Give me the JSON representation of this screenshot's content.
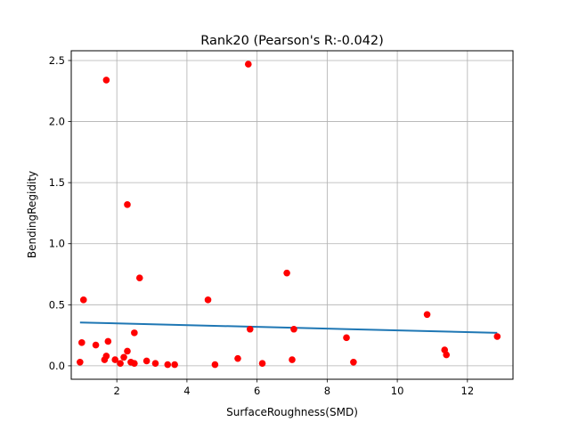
{
  "chart_data": {
    "type": "scatter",
    "title": "Rank20 (Pearson's R:-0.042)",
    "xlabel": "SurfaceRoughness(SMD)",
    "ylabel": "BendingRegidity",
    "xlim": [
      0.7,
      13.3
    ],
    "ylim": [
      -0.11,
      2.58
    ],
    "xticks": [
      2,
      4,
      6,
      8,
      10,
      12
    ],
    "yticks": [
      0.0,
      0.5,
      1.0,
      1.5,
      2.0,
      2.5
    ],
    "xtick_labels": [
      "2",
      "4",
      "6",
      "8",
      "10",
      "12"
    ],
    "ytick_labels": [
      "0.0",
      "0.5",
      "1.0",
      "1.5",
      "2.0",
      "2.5"
    ],
    "grid": true,
    "marker_color": "#ff0000",
    "fit_color": "#1f77b4",
    "points": [
      {
        "x": 5.75,
        "y": 2.47
      },
      {
        "x": 1.7,
        "y": 2.34
      },
      {
        "x": 2.3,
        "y": 1.32
      },
      {
        "x": 6.85,
        "y": 0.76
      },
      {
        "x": 2.65,
        "y": 0.72
      },
      {
        "x": 1.05,
        "y": 0.54
      },
      {
        "x": 4.6,
        "y": 0.54
      },
      {
        "x": 10.85,
        "y": 0.42
      },
      {
        "x": 5.8,
        "y": 0.3
      },
      {
        "x": 7.05,
        "y": 0.3
      },
      {
        "x": 2.5,
        "y": 0.27
      },
      {
        "x": 12.85,
        "y": 0.24
      },
      {
        "x": 8.55,
        "y": 0.23
      },
      {
        "x": 1.75,
        "y": 0.2
      },
      {
        "x": 1.0,
        "y": 0.19
      },
      {
        "x": 1.4,
        "y": 0.17
      },
      {
        "x": 11.35,
        "y": 0.13
      },
      {
        "x": 2.3,
        "y": 0.12
      },
      {
        "x": 11.4,
        "y": 0.09
      },
      {
        "x": 1.7,
        "y": 0.08
      },
      {
        "x": 2.2,
        "y": 0.07
      },
      {
        "x": 1.95,
        "y": 0.05
      },
      {
        "x": 1.65,
        "y": 0.05
      },
      {
        "x": 5.45,
        "y": 0.06
      },
      {
        "x": 7.0,
        "y": 0.05
      },
      {
        "x": 2.85,
        "y": 0.04
      },
      {
        "x": 0.95,
        "y": 0.03
      },
      {
        "x": 2.4,
        "y": 0.03
      },
      {
        "x": 8.75,
        "y": 0.03
      },
      {
        "x": 2.1,
        "y": 0.02
      },
      {
        "x": 2.5,
        "y": 0.02
      },
      {
        "x": 3.1,
        "y": 0.02
      },
      {
        "x": 6.15,
        "y": 0.02
      },
      {
        "x": 3.45,
        "y": 0.01
      },
      {
        "x": 3.65,
        "y": 0.01
      },
      {
        "x": 4.8,
        "y": 0.01
      }
    ],
    "fit_line": {
      "x": [
        0.95,
        12.85
      ],
      "y": [
        0.355,
        0.27
      ]
    }
  }
}
